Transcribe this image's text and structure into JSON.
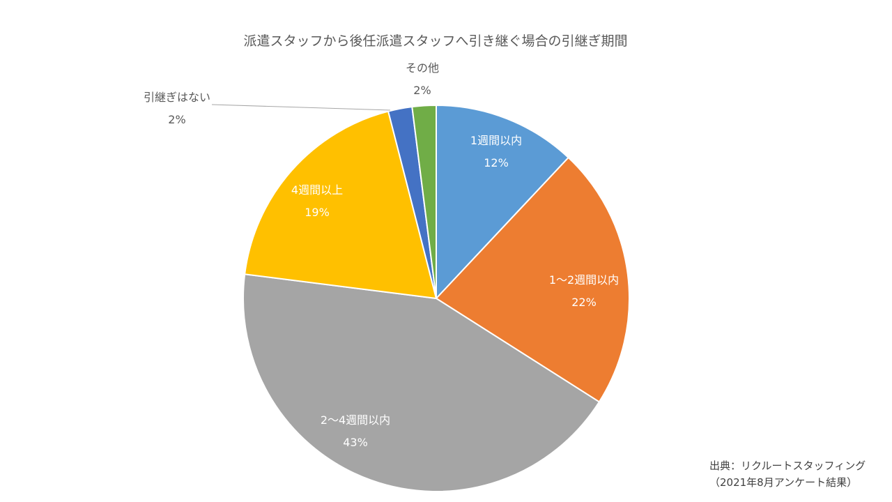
{
  "chart_data": {
    "type": "pie",
    "title": "派遣スタッフから後任派遣スタッフへ引き継ぐ場合の引継ぎ期間",
    "categories": [
      "1週間以内",
      "1〜2週間以内",
      "2〜4週間以内",
      "4週間以上",
      "引継ぎはない",
      "その他"
    ],
    "values": [
      12,
      22,
      43,
      19,
      2,
      2
    ],
    "value_labels": [
      "12%",
      "22%",
      "43%",
      "19%",
      "2%",
      "2%"
    ],
    "colors": [
      "#5b9bd5",
      "#ed7d31",
      "#a5a5a5",
      "#ffc000",
      "#4472c4",
      "#70ad47"
    ],
    "start": "12 o'clock",
    "direction": "clockwise",
    "label_colors": [
      "#ffffff",
      "#ffffff",
      "#ffffff",
      "#ffffff",
      "#595959",
      "#595959"
    ]
  },
  "source": {
    "line1": "出典：リクルートスタッフィング",
    "line2": "（2021年8月アンケート結果）"
  }
}
